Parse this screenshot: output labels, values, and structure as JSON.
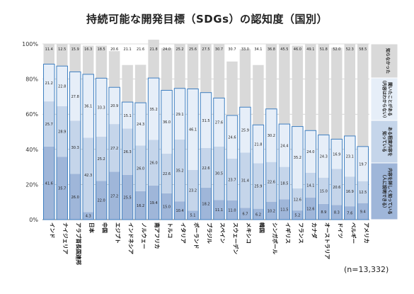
{
  "page": {
    "note": "(n=13,332)"
  },
  "colors": {
    "seg0": "#9fb6d9",
    "seg1": "#c5d5ea",
    "seg2": "#e6eef8",
    "seg3": "#d9d9d9",
    "bar_border": "#3f7fc0",
    "grid": "#bbbbbb"
  },
  "chart_data": {
    "type": "bar",
    "stacked": true,
    "title": "持続可能な開発目標（SDGs）の認知度（国別）",
    "xlabel": "",
    "ylabel": "",
    "ylim": [
      0,
      100
    ],
    "yticks": [
      "0%",
      "20%",
      "40%",
      "60%",
      "80%",
      "100%"
    ],
    "grid": true,
    "legend_position": "right",
    "categories": [
      "インド",
      "ナイジェリア",
      "アラブ首長国連邦",
      "日本",
      "中国",
      "エジプト",
      "インドネシア",
      "ノルウェー",
      "南アフリカ",
      "トルコ",
      "イタリア",
      "ポーランド",
      "ブラジル",
      "スペイン",
      "スウェーデン",
      "メキシコ",
      "韓国",
      "シンガポール",
      "イギリス",
      "フランス",
      "カナダ",
      "オーストラリア",
      "ドイツ",
      "ベルギー",
      "アメリカ"
    ],
    "series": [
      {
        "name": "内容を詳しく知っている（人に説明できる）",
        "values": [
          41.6,
          35.7,
          26.0,
          4.3,
          22.0,
          27.2,
          25.5,
          16.2,
          19.4,
          15.0,
          10.4,
          5.1,
          18.2,
          11.1,
          11.0,
          6.7,
          6.2,
          10.2,
          11.5,
          5.2,
          12.6,
          8.9,
          8.3,
          7.6,
          9.4
        ]
      },
      {
        "name": "ある程度内容を知っている",
        "values": [
          25.7,
          28.9,
          30.3,
          42.3,
          25.2,
          27.2,
          26.3,
          26.0,
          26.0,
          22.6,
          35.2,
          23.2,
          22.6,
          30.5,
          23.7,
          31.4,
          25.9,
          22.6,
          18.5,
          12.6,
          14.1,
          15.0,
          20.6,
          16.9,
          12.5
        ]
      },
      {
        "name": "聞いたことがある（内容はわからない）",
        "values": [
          21.2,
          22.8,
          27.8,
          36.1,
          33.3,
          20.9,
          15.1,
          24.3,
          35.2,
          36.0,
          29.1,
          46.1,
          31.5,
          27.6,
          24.6,
          25.9,
          21.8,
          30.2,
          24.4,
          35.2,
          24.0,
          24.3,
          16.9,
          23.1,
          19.7
        ]
      },
      {
        "name": "知らなかった",
        "values": [
          11.4,
          12.5,
          15.9,
          16.3,
          18.5,
          20.6,
          21.1,
          21.6,
          21.8,
          24.0,
          25.2,
          25.6,
          27.5,
          30.7,
          30.7,
          33.0,
          34.1,
          36.8,
          45.5,
          46.0,
          49.1,
          51.8,
          52.0,
          52.3,
          58.5
        ]
      }
    ],
    "legend_labels": [
      [
        "知らなかった"
      ],
      [
        "聞いたことがある",
        "（内容はわからない）"
      ],
      [
        "ある程度内容を",
        "知っている"
      ],
      [
        "内容を詳しく知っている",
        "（人に説明できる）"
      ]
    ]
  }
}
